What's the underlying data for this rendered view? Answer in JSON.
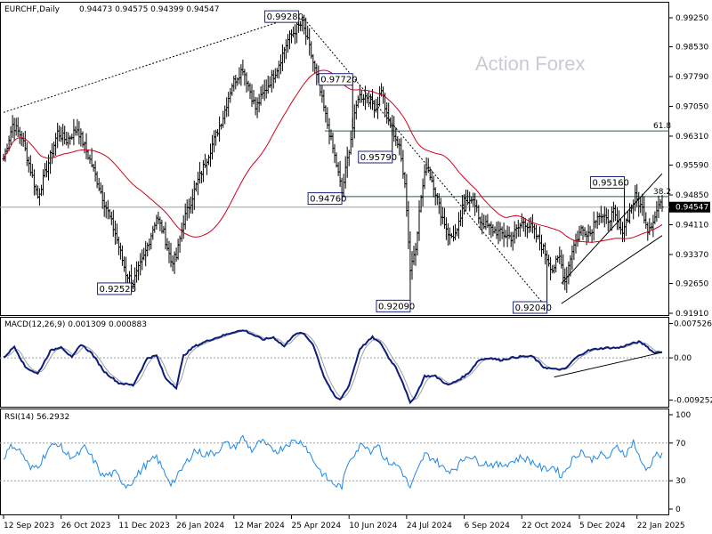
{
  "chart_data": [
    {
      "type": "ohlc",
      "title": "EURCHF,Daily",
      "ohlc_header": "0.94473 0.94575 0.94399 0.94547",
      "last_price": "0.94547",
      "watermark": "Action Forex",
      "ylim": [
        0.9191,
        0.9925
      ],
      "y_ticks": [
        "0.99250",
        "0.98530",
        "0.97790",
        "0.97050",
        "0.96310",
        "0.95590",
        "0.94850",
        "0.94110",
        "0.93370",
        "0.92650",
        "0.91910"
      ],
      "x_tick_labels": [
        "12 Sep 2023",
        "26 Oct 2023",
        "11 Dec 2023",
        "26 Jan 2024",
        "12 Mar 2024",
        "25 Apr 2024",
        "10 Jun 2024",
        "24 Jul 2024",
        "6 Sep 2024",
        "22 Oct 2024",
        "5 Dec 2024",
        "22 Jan 2025"
      ],
      "x_tick_index": [
        0,
        32,
        64,
        96,
        128,
        160,
        192,
        224,
        256,
        288,
        320,
        352
      ],
      "anchors": [
        [
          0,
          0.9575
        ],
        [
          5,
          0.966
        ],
        [
          10,
          0.963
        ],
        [
          13,
          0.958
        ],
        [
          19,
          0.948
        ],
        [
          26,
          0.958
        ],
        [
          30,
          0.964
        ],
        [
          35,
          0.962
        ],
        [
          41,
          0.965
        ],
        [
          49,
          0.956
        ],
        [
          55,
          0.948
        ],
        [
          62,
          0.939
        ],
        [
          68,
          0.929
        ],
        [
          72,
          0.9268
        ],
        [
          78,
          0.933
        ],
        [
          85,
          0.943
        ],
        [
          89,
          0.939
        ],
        [
          93,
          0.932
        ],
        [
          96,
          0.933
        ],
        [
          100,
          0.942
        ],
        [
          108,
          0.952
        ],
        [
          116,
          0.961
        ],
        [
          122,
          0.968
        ],
        [
          127,
          0.976
        ],
        [
          133,
          0.98
        ],
        [
          140,
          0.97
        ],
        [
          146,
          0.975
        ],
        [
          152,
          0.98
        ],
        [
          158,
          0.987
        ],
        [
          163,
          0.99
        ],
        [
          166,
          0.991
        ],
        [
          170,
          0.985
        ],
        [
          175,
          0.976
        ],
        [
          180,
          0.966
        ],
        [
          185,
          0.956
        ],
        [
          188,
          0.949
        ],
        [
          192,
          0.96
        ],
        [
          197,
          0.973
        ],
        [
          202,
          0.973
        ],
        [
          207,
          0.97
        ],
        [
          210,
          0.975
        ],
        [
          213,
          0.968
        ],
        [
          216,
          0.965
        ],
        [
          220,
          0.96
        ],
        [
          223,
          0.952
        ],
        [
          226,
          0.93
        ],
        [
          229,
          0.936
        ],
        [
          232,
          0.948
        ],
        [
          235,
          0.956
        ],
        [
          239,
          0.951
        ],
        [
          243,
          0.944
        ],
        [
          248,
          0.938
        ],
        [
          252,
          0.939
        ],
        [
          256,
          0.947
        ],
        [
          260,
          0.948
        ],
        [
          265,
          0.942
        ],
        [
          271,
          0.94
        ],
        [
          276,
          0.939
        ],
        [
          282,
          0.938
        ],
        [
          289,
          0.942
        ],
        [
          294,
          0.94
        ],
        [
          300,
          0.935
        ],
        [
          305,
          0.93
        ],
        [
          309,
          0.933
        ],
        [
          312,
          0.927
        ],
        [
          316,
          0.935
        ],
        [
          321,
          0.94
        ],
        [
          326,
          0.939
        ],
        [
          330,
          0.944
        ],
        [
          335,
          0.942
        ],
        [
          339,
          0.944
        ],
        [
          343,
          0.939
        ],
        [
          347,
          0.943
        ],
        [
          351,
          0.948
        ],
        [
          355,
          0.945
        ],
        [
          358,
          0.94
        ],
        [
          362,
          0.943
        ],
        [
          364,
          0.946
        ],
        [
          366,
          0.9455
        ]
      ],
      "ma_period": 55,
      "swing_labels": [
        {
          "text": "0.99280",
          "i": 164,
          "value": 0.9928,
          "side": "left"
        },
        {
          "text": "0.97720",
          "i": 194,
          "value": 0.9772,
          "side": "left"
        },
        {
          "text": "0.95790",
          "i": 216,
          "value": 0.9579,
          "side": "left"
        },
        {
          "text": "0.94760",
          "i": 188,
          "value": 0.9476,
          "side": "left"
        },
        {
          "text": "0.92520",
          "i": 71,
          "value": 0.9252,
          "side": "left"
        },
        {
          "text": "0.92090",
          "i": 226,
          "value": 0.9209,
          "side": "left"
        },
        {
          "text": "0.92040",
          "i": 302,
          "value": 0.9204,
          "side": "left"
        },
        {
          "text": "0.95160",
          "i": 345,
          "value": 0.9516,
          "side": "left"
        }
      ],
      "fib_levels": [
        {
          "label": "61.8",
          "value": 0.9644
        },
        {
          "label": "38.2",
          "value": 0.9481
        }
      ],
      "trendlines": [
        {
          "from": [
            0,
            0.969
          ],
          "to": [
            162,
            0.9928
          ],
          "style": "dotted"
        },
        {
          "from": [
            166,
            0.9928
          ],
          "to": [
            302,
            0.9204
          ],
          "style": "dotted"
        },
        {
          "from": [
            310,
            0.9215
          ],
          "to": [
            366,
            0.9384
          ],
          "style": "solid"
        },
        {
          "from": [
            310,
            0.9265
          ],
          "to": [
            366,
            0.9538
          ],
          "style": "solid"
        }
      ]
    },
    {
      "type": "line",
      "title": "MACD(12,26,9) 0.001309 0.000883",
      "ylim": [
        -0.0105,
        0.0082
      ],
      "y_ticks": [
        "0.007526",
        "0.00",
        "-0.009252"
      ],
      "macd_anchors": [
        [
          0,
          0.0
        ],
        [
          6,
          0.0025
        ],
        [
          12,
          -0.002
        ],
        [
          19,
          -0.0035
        ],
        [
          26,
          0.0015
        ],
        [
          32,
          0.0025
        ],
        [
          38,
          0.0
        ],
        [
          43,
          0.003
        ],
        [
          49,
          0.001
        ],
        [
          56,
          -0.003
        ],
        [
          64,
          -0.0055
        ],
        [
          72,
          -0.006
        ],
        [
          80,
          0.0
        ],
        [
          85,
          0.0005
        ],
        [
          90,
          -0.0045
        ],
        [
          96,
          -0.0065
        ],
        [
          100,
          0.0005
        ],
        [
          106,
          0.0025
        ],
        [
          115,
          0.004
        ],
        [
          123,
          0.005
        ],
        [
          129,
          0.0058
        ],
        [
          134,
          0.006
        ],
        [
          139,
          0.005
        ],
        [
          144,
          0.004
        ],
        [
          150,
          0.0045
        ],
        [
          156,
          0.0025
        ],
        [
          161,
          0.005
        ],
        [
          166,
          0.0055
        ],
        [
          172,
          0.003
        ],
        [
          178,
          -0.004
        ],
        [
          184,
          -0.0085
        ],
        [
          187,
          -0.0092
        ],
        [
          192,
          -0.006
        ],
        [
          198,
          0.002
        ],
        [
          205,
          0.0045
        ],
        [
          210,
          0.003
        ],
        [
          214,
          0.0
        ],
        [
          218,
          -0.002
        ],
        [
          222,
          -0.0055
        ],
        [
          226,
          -0.01
        ],
        [
          230,
          -0.0075
        ],
        [
          234,
          -0.004
        ],
        [
          240,
          -0.004
        ],
        [
          247,
          -0.006
        ],
        [
          252,
          -0.005
        ],
        [
          258,
          -0.0035
        ],
        [
          264,
          -0.0005
        ],
        [
          270,
          0.0
        ],
        [
          276,
          -0.0005
        ],
        [
          282,
          0.0
        ],
        [
          288,
          0.0003
        ],
        [
          294,
          0.0003
        ],
        [
          300,
          -0.002
        ],
        [
          306,
          -0.0025
        ],
        [
          312,
          -0.0025
        ],
        [
          318,
          0.0
        ],
        [
          324,
          0.0015
        ],
        [
          330,
          0.002
        ],
        [
          336,
          0.0022
        ],
        [
          342,
          0.0022
        ],
        [
          348,
          0.003
        ],
        [
          353,
          0.0035
        ],
        [
          357,
          0.0027
        ],
        [
          361,
          0.0012
        ],
        [
          366,
          0.0013
        ]
      ],
      "signal_lag": 4,
      "trendline": {
        "from": [
          306,
          -0.0042
        ],
        "to": [
          366,
          0.0012
        ]
      }
    },
    {
      "type": "line",
      "title": "RSI(14) 56.2932",
      "ylim": [
        0,
        100
      ],
      "y_ticks": [
        "100",
        "70",
        "30",
        "0"
      ],
      "levels": [
        70,
        30
      ],
      "rsi_anchors": [
        [
          0,
          55
        ],
        [
          5,
          68
        ],
        [
          10,
          60
        ],
        [
          15,
          42
        ],
        [
          20,
          48
        ],
        [
          25,
          64
        ],
        [
          30,
          70
        ],
        [
          35,
          58
        ],
        [
          40,
          55
        ],
        [
          45,
          65
        ],
        [
          50,
          52
        ],
        [
          55,
          35
        ],
        [
          62,
          38
        ],
        [
          68,
          25
        ],
        [
          72,
          30
        ],
        [
          78,
          45
        ],
        [
          85,
          55
        ],
        [
          89,
          40
        ],
        [
          93,
          28
        ],
        [
          96,
          32
        ],
        [
          100,
          45
        ],
        [
          106,
          62
        ],
        [
          112,
          58
        ],
        [
          118,
          60
        ],
        [
          123,
          70
        ],
        [
          128,
          65
        ],
        [
          133,
          76
        ],
        [
          138,
          62
        ],
        [
          143,
          72
        ],
        [
          148,
          64
        ],
        [
          153,
          62
        ],
        [
          158,
          70
        ],
        [
          163,
          72
        ],
        [
          167,
          70
        ],
        [
          172,
          52
        ],
        [
          177,
          38
        ],
        [
          181,
          30
        ],
        [
          185,
          25
        ],
        [
          188,
          24
        ],
        [
          192,
          52
        ],
        [
          196,
          62
        ],
        [
          200,
          70
        ],
        [
          204,
          62
        ],
        [
          208,
          70
        ],
        [
          212,
          52
        ],
        [
          216,
          48
        ],
        [
          220,
          45
        ],
        [
          224,
          30
        ],
        [
          226,
          22
        ],
        [
          230,
          40
        ],
        [
          234,
          58
        ],
        [
          240,
          52
        ],
        [
          246,
          40
        ],
        [
          252,
          45
        ],
        [
          258,
          58
        ],
        [
          264,
          50
        ],
        [
          270,
          48
        ],
        [
          276,
          46
        ],
        [
          282,
          50
        ],
        [
          288,
          55
        ],
        [
          294,
          50
        ],
        [
          300,
          42
        ],
        [
          306,
          45
        ],
        [
          310,
          35
        ],
        [
          316,
          52
        ],
        [
          321,
          62
        ],
        [
          326,
          52
        ],
        [
          331,
          58
        ],
        [
          336,
          54
        ],
        [
          341,
          66
        ],
        [
          346,
          58
        ],
        [
          350,
          72
        ],
        [
          354,
          50
        ],
        [
          358,
          42
        ],
        [
          362,
          58
        ],
        [
          366,
          56
        ]
      ]
    }
  ]
}
